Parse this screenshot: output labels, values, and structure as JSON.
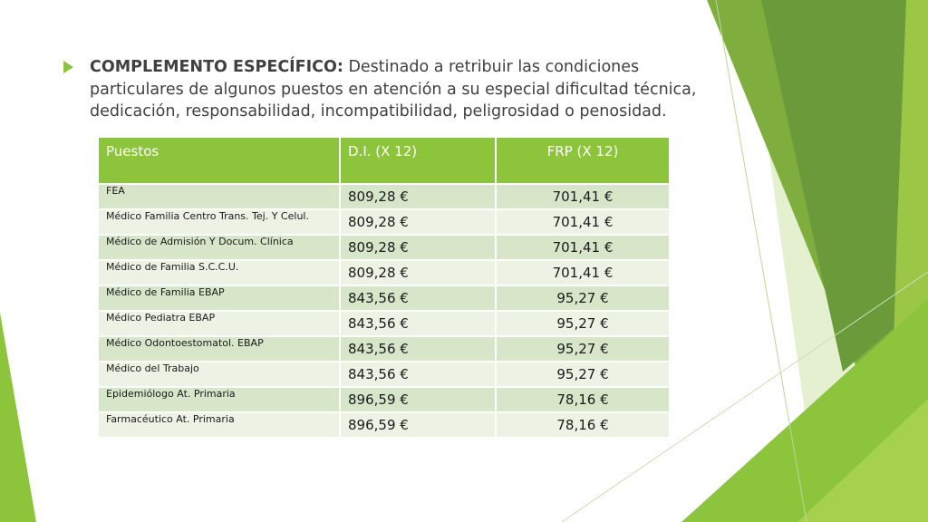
{
  "slide": {
    "bullet": {
      "label": "COMPLEMENTO ESPECÍFICO:",
      "text": " Destinado a retribuir las condiciones particulares de algunos puestos en atención a su especial dificultad técnica, dedicación, responsabilidad, incompatibilidad, peligrosidad o penosidad."
    },
    "table": {
      "headers": [
        "Puestos",
        "D.I. (X 12)",
        "FRP (X 12)"
      ],
      "rows": [
        {
          "puesto": "FEA",
          "di": "809,28 €",
          "frp": "701,41 €"
        },
        {
          "puesto": "Médico Familia Centro Trans. Tej. Y Celul.",
          "di": "809,28 €",
          "frp": "701,41 €"
        },
        {
          "puesto": "Médico de Admisión Y Docum. Clínica",
          "di": "809,28 €",
          "frp": "701,41 €"
        },
        {
          "puesto": "Médico de Familia S.C.C.U.",
          "di": "809,28 €",
          "frp": "701,41 €"
        },
        {
          "puesto": "Médico de Familia EBAP",
          "di": "843,56 €",
          "frp": "95,27 €"
        },
        {
          "puesto": "Médico Pediatra EBAP",
          "di": "843,56 €",
          "frp": "95,27 €"
        },
        {
          "puesto": "Médico Odontoestomatol. EBAP",
          "di": "843,56 €",
          "frp": "95,27 €"
        },
        {
          "puesto": "Médico del Trabajo",
          "di": "843,56 €",
          "frp": "95,27 €"
        },
        {
          "puesto": "Epidemiólogo At. Primaria",
          "di": "896,59 €",
          "frp": "78,16 €"
        },
        {
          "puesto": "Farmacéutico At. Primaria",
          "di": "896,59 €",
          "frp": "78,16 €"
        }
      ]
    },
    "colors": {
      "accent": "#8cc43b",
      "row_dark": "#d7e6c8",
      "row_light": "#ecf3e5",
      "text": "#404040"
    },
    "icons": {
      "bullet": "triangle-right-icon"
    }
  }
}
